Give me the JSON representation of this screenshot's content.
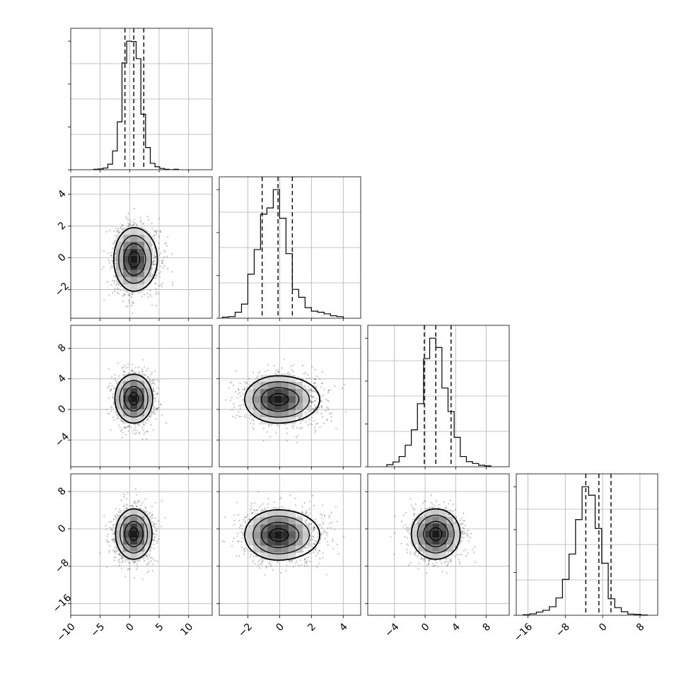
{
  "chart_data": {
    "type": "corner",
    "n_params": 4,
    "title": "",
    "histogram": {
      "param_ranges": [
        [
          -10,
          14
        ],
        [
          -3.8,
          5.1
        ],
        [
          -7.5,
          11
        ],
        [
          -18.5,
          11.8
        ]
      ],
      "bins": [
        {
          "edges": [
            -6.1,
            -5.3,
            -4.5,
            -3.7,
            -2.9,
            -2.1,
            -1.3,
            -0.5,
            0.3,
            1.1,
            1.9,
            2.7,
            3.5,
            4.3,
            5.1,
            5.9,
            6.7,
            7.5,
            8.3
          ],
          "counts": [
            1,
            2,
            4,
            13,
            44,
            112,
            250,
            301,
            300,
            260,
            130,
            52,
            15,
            7,
            3,
            1,
            0,
            1
          ],
          "quantiles": [
            -0.8,
            0.7,
            2.4
          ]
        },
        {
          "edges": [
            -3.6,
            -3.2,
            -2.8,
            -2.4,
            -2.0,
            -1.6,
            -1.2,
            -0.8,
            -0.4,
            0.0,
            0.4,
            0.8,
            1.2,
            1.6,
            2.0,
            2.4,
            2.8,
            3.2,
            3.6,
            4.0
          ],
          "counts": [
            4,
            6,
            22,
            52,
            162,
            252,
            382,
            405,
            472,
            367,
            237,
            106,
            77,
            39,
            26,
            22,
            16,
            9,
            6
          ],
          "quantiles": [
            -1.1,
            -0.1,
            0.8
          ]
        },
        {
          "edges": [
            -5.0,
            -4.2,
            -3.4,
            -2.6,
            -1.8,
            -1.0,
            -0.2,
            0.6,
            1.4,
            2.2,
            3.0,
            3.8,
            4.6,
            5.4,
            6.2,
            7.0,
            7.8,
            8.6
          ],
          "counts": [
            7,
            16,
            34,
            72,
            123,
            210,
            360,
            428,
            397,
            262,
            184,
            98,
            34,
            17,
            11,
            5,
            3
          ],
          "quantiles": [
            -0.1,
            1.4,
            3.4
          ]
        },
        {
          "edges": [
            -17.0,
            -15.6,
            -14.2,
            -12.8,
            -11.4,
            -10.0,
            -8.6,
            -7.2,
            -5.8,
            -4.4,
            -3.0,
            -1.6,
            -0.2,
            1.2,
            2.6,
            4.0,
            5.4,
            6.8,
            8.2,
            9.6
          ],
          "counts": [
            2,
            5,
            11,
            17,
            29,
            59,
            122,
            208,
            325,
            437,
            408,
            295,
            177,
            56,
            26,
            12,
            4,
            3,
            1
          ],
          "quantiles": [
            -3.6,
            -0.8,
            1.8
          ]
        }
      ]
    },
    "contours": [
      {
        "row": 1,
        "col": 0,
        "center": [
          0.7,
          -0.1
        ],
        "sigma": [
          1.7,
          1.0
        ],
        "skew": 0.18,
        "density": 1.0
      },
      {
        "row": 2,
        "col": 0,
        "center": [
          0.7,
          1.4
        ],
        "sigma": [
          1.6,
          1.6
        ],
        "skew": 0.0,
        "density": 1.0
      },
      {
        "row": 2,
        "col": 1,
        "center": [
          -0.1,
          1.3
        ],
        "sigma": [
          1.05,
          1.55
        ],
        "skew": 0.25,
        "density": 1.0
      },
      {
        "row": 3,
        "col": 0,
        "center": [
          0.7,
          -1.1
        ],
        "sigma": [
          1.55,
          2.7
        ],
        "skew": 0.0,
        "density": 1.0
      },
      {
        "row": 3,
        "col": 1,
        "center": [
          -0.1,
          -1.3
        ],
        "sigma": [
          1.05,
          2.7
        ],
        "skew": 0.25,
        "density": 1.0
      },
      {
        "row": 3,
        "col": 2,
        "center": [
          1.4,
          -1.1
        ],
        "sigma": [
          1.6,
          2.7
        ],
        "skew": 0.0,
        "density": 1.0
      }
    ],
    "axes": {
      "x_ticks": [
        [
          -10,
          -5,
          0,
          5,
          10
        ],
        [
          -2,
          0,
          2,
          4
        ],
        [
          -4,
          0,
          4,
          8
        ],
        [
          -16,
          -8,
          0,
          8
        ]
      ],
      "y_ticks": [
        null,
        [
          -2,
          0,
          2,
          4
        ],
        [
          -4,
          0,
          4,
          8
        ],
        [
          -16,
          -8,
          0,
          8
        ]
      ],
      "x_tick_labels": [
        [
          "−10",
          "−5",
          "0",
          "5",
          "10"
        ],
        [
          "−2",
          "0",
          "2",
          "4"
        ],
        [
          "−4",
          "0",
          "4",
          "8"
        ],
        [
          "−16",
          "−8",
          "0",
          "8"
        ]
      ],
      "y_tick_labels": [
        null,
        [
          "−2",
          "0",
          "2",
          "4"
        ],
        [
          "−4",
          "0",
          "4",
          "8"
        ],
        [
          "−16",
          "−8",
          "0",
          "8"
        ]
      ]
    },
    "grid": true,
    "legend": "none"
  }
}
